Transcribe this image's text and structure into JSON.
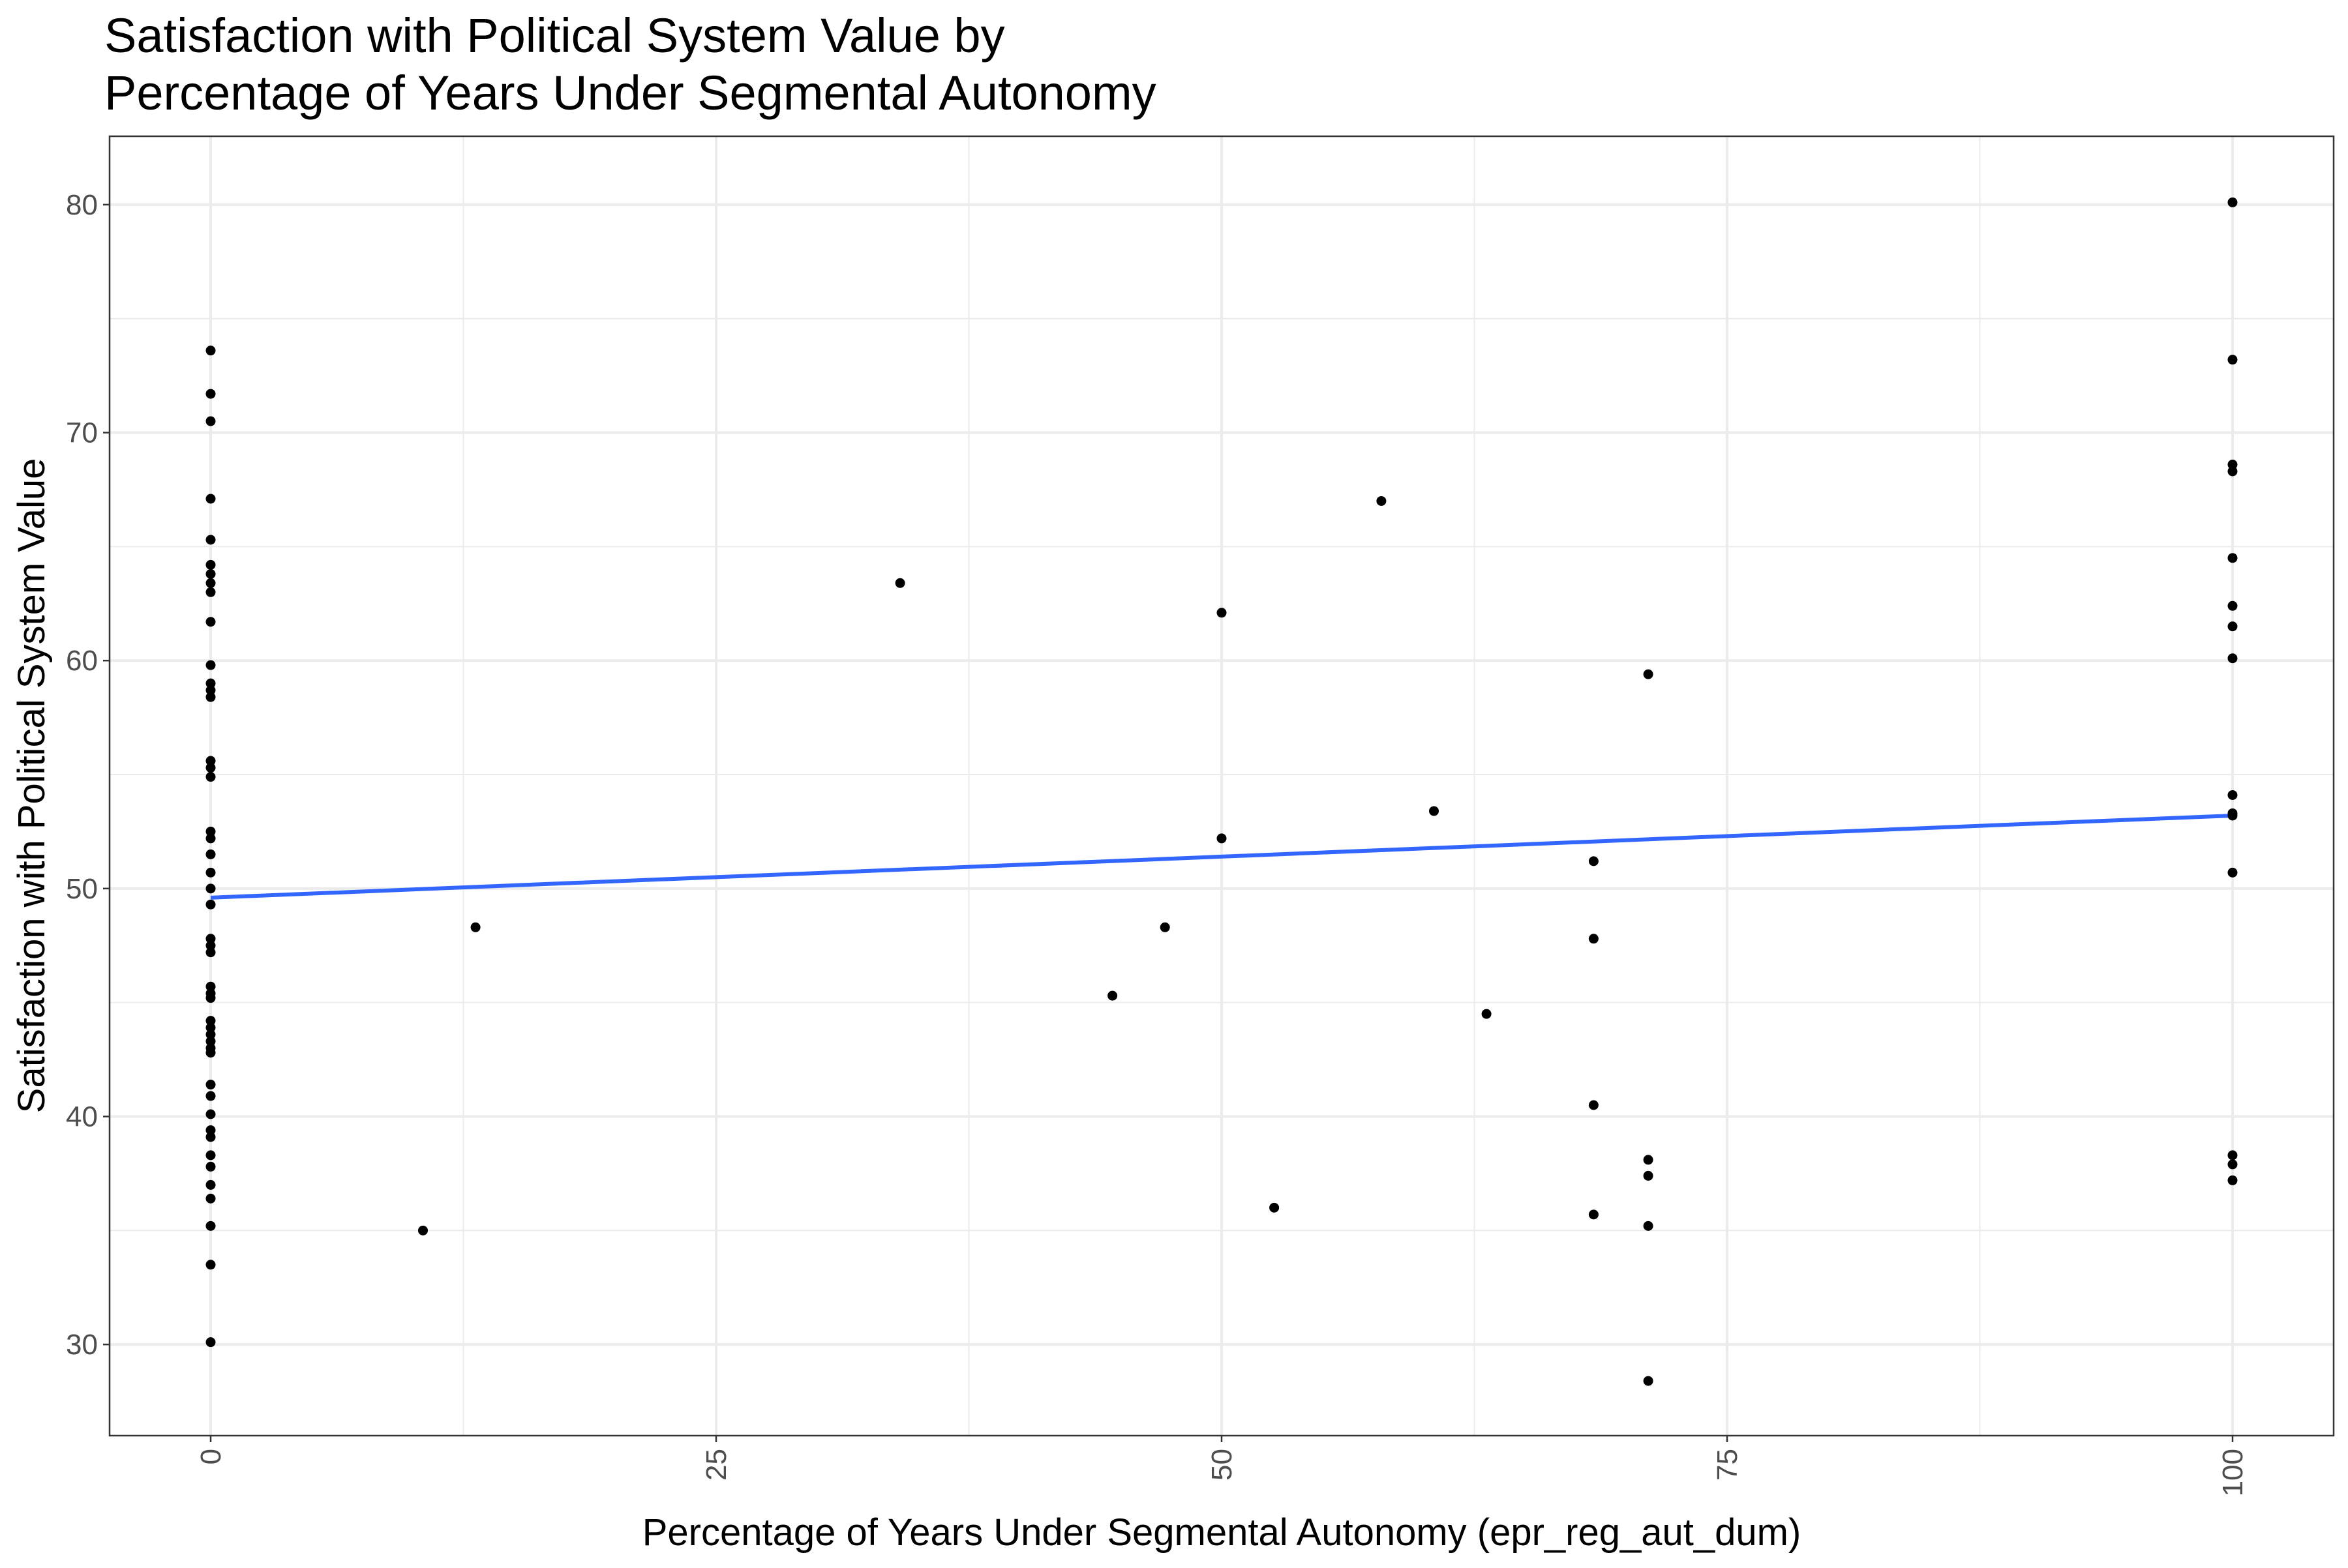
{
  "chart_data": {
    "type": "scatter",
    "title": "Satisfaction with Political System Value by\nPercentage of Years Under Segmental Autonomy",
    "xlabel": "Percentage of Years Under Segmental Autonomy (epr_reg_aut_dum)",
    "ylabel": "Satisfaction with Political System Value",
    "xlim": [
      -5,
      105
    ],
    "ylim": [
      26,
      83
    ],
    "x_ticks": [
      0,
      25,
      50,
      75,
      100
    ],
    "y_ticks": [
      30,
      40,
      50,
      60,
      70,
      80
    ],
    "grid": true,
    "colors": {
      "points": "#000000",
      "trend_line": "#3366ff",
      "grid": "#ebebeb",
      "panel_border": "#333333"
    },
    "points": [
      {
        "x": 0,
        "y": 73.6
      },
      {
        "x": 0,
        "y": 71.7
      },
      {
        "x": 0,
        "y": 70.5
      },
      {
        "x": 0,
        "y": 67.1
      },
      {
        "x": 0,
        "y": 65.3
      },
      {
        "x": 0,
        "y": 64.2
      },
      {
        "x": 0,
        "y": 63.8
      },
      {
        "x": 0,
        "y": 63.4
      },
      {
        "x": 0,
        "y": 63.0
      },
      {
        "x": 0,
        "y": 61.7
      },
      {
        "x": 0,
        "y": 59.8
      },
      {
        "x": 0,
        "y": 59.0
      },
      {
        "x": 0,
        "y": 58.7
      },
      {
        "x": 0,
        "y": 58.4
      },
      {
        "x": 0,
        "y": 55.6
      },
      {
        "x": 0,
        "y": 55.3
      },
      {
        "x": 0,
        "y": 54.9
      },
      {
        "x": 0,
        "y": 52.5
      },
      {
        "x": 0,
        "y": 52.2
      },
      {
        "x": 0,
        "y": 51.5
      },
      {
        "x": 0,
        "y": 50.7
      },
      {
        "x": 0,
        "y": 50.0
      },
      {
        "x": 0,
        "y": 49.3
      },
      {
        "x": 0,
        "y": 47.8
      },
      {
        "x": 0,
        "y": 47.5
      },
      {
        "x": 0,
        "y": 47.2
      },
      {
        "x": 0,
        "y": 45.7
      },
      {
        "x": 0,
        "y": 45.4
      },
      {
        "x": 0,
        "y": 45.2
      },
      {
        "x": 0,
        "y": 44.2
      },
      {
        "x": 0,
        "y": 43.9
      },
      {
        "x": 0,
        "y": 43.6
      },
      {
        "x": 0,
        "y": 43.3
      },
      {
        "x": 0,
        "y": 43.0
      },
      {
        "x": 0,
        "y": 42.8
      },
      {
        "x": 0,
        "y": 41.4
      },
      {
        "x": 0,
        "y": 40.9
      },
      {
        "x": 0,
        "y": 40.1
      },
      {
        "x": 0,
        "y": 39.4
      },
      {
        "x": 0,
        "y": 39.1
      },
      {
        "x": 0,
        "y": 38.3
      },
      {
        "x": 0,
        "y": 37.8
      },
      {
        "x": 0,
        "y": 37.0
      },
      {
        "x": 0,
        "y": 36.4
      },
      {
        "x": 0,
        "y": 35.2
      },
      {
        "x": 0,
        "y": 33.5
      },
      {
        "x": 0,
        "y": 30.1
      },
      {
        "x": 10.5,
        "y": 35.0
      },
      {
        "x": 13.1,
        "y": 48.3
      },
      {
        "x": 34.1,
        "y": 63.4
      },
      {
        "x": 44.6,
        "y": 45.3
      },
      {
        "x": 47.2,
        "y": 48.3
      },
      {
        "x": 50.0,
        "y": 62.1
      },
      {
        "x": 50.0,
        "y": 52.2
      },
      {
        "x": 52.6,
        "y": 36.0
      },
      {
        "x": 57.9,
        "y": 67.0
      },
      {
        "x": 60.5,
        "y": 53.4
      },
      {
        "x": 63.1,
        "y": 44.5
      },
      {
        "x": 68.4,
        "y": 51.2
      },
      {
        "x": 68.4,
        "y": 47.8
      },
      {
        "x": 68.4,
        "y": 40.5
      },
      {
        "x": 68.4,
        "y": 35.7
      },
      {
        "x": 71.1,
        "y": 59.4
      },
      {
        "x": 71.1,
        "y": 38.1
      },
      {
        "x": 71.1,
        "y": 37.4
      },
      {
        "x": 71.1,
        "y": 35.2
      },
      {
        "x": 71.1,
        "y": 28.4
      },
      {
        "x": 100,
        "y": 80.1
      },
      {
        "x": 100,
        "y": 73.2
      },
      {
        "x": 100,
        "y": 68.6
      },
      {
        "x": 100,
        "y": 68.3
      },
      {
        "x": 100,
        "y": 64.5
      },
      {
        "x": 100,
        "y": 62.4
      },
      {
        "x": 100,
        "y": 61.5
      },
      {
        "x": 100,
        "y": 60.1
      },
      {
        "x": 100,
        "y": 54.1
      },
      {
        "x": 100,
        "y": 53.3
      },
      {
        "x": 100,
        "y": 53.2
      },
      {
        "x": 100,
        "y": 50.7
      },
      {
        "x": 100,
        "y": 38.3
      },
      {
        "x": 100,
        "y": 37.9
      },
      {
        "x": 100,
        "y": 37.2
      }
    ],
    "trend_line": {
      "x": [
        0,
        100
      ],
      "y": [
        49.6,
        53.2
      ]
    }
  }
}
